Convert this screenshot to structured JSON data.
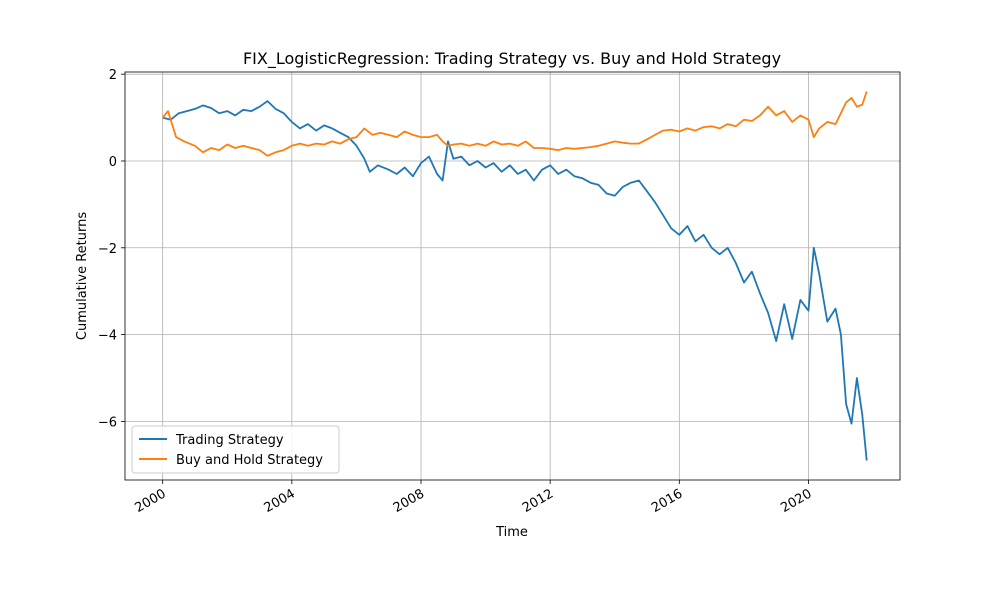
{
  "chart_data": {
    "type": "line",
    "title": "FIX_LogisticRegression: Trading Strategy vs. Buy and Hold Strategy",
    "xlabel": "Time",
    "ylabel": "Cumulative Returns",
    "xlim": [
      "1998-11-01",
      "2022-11-01"
    ],
    "ylim": [
      -7.35,
      2.05
    ],
    "x_ticks": [
      {
        "label": "2000",
        "date": "2000-01-01"
      },
      {
        "label": "2004",
        "date": "2004-01-01"
      },
      {
        "label": "2008",
        "date": "2008-01-01"
      },
      {
        "label": "2012",
        "date": "2012-01-01"
      },
      {
        "label": "2016",
        "date": "2016-01-01"
      },
      {
        "label": "2020",
        "date": "2020-01-01"
      }
    ],
    "y_ticks": [
      {
        "label": "2",
        "value": 2
      },
      {
        "label": "0",
        "value": 0
      },
      {
        "label": "−2",
        "value": -2
      },
      {
        "label": "−4",
        "value": -4
      },
      {
        "label": "−6",
        "value": -6
      }
    ],
    "grid": true,
    "legend_position": "lower-left",
    "series": [
      {
        "name": "Trading Strategy",
        "color": "#1f77b4",
        "points": [
          [
            "2000-01-01",
            1.0
          ],
          [
            "2000-04-01",
            0.95
          ],
          [
            "2000-07-01",
            1.1
          ],
          [
            "2000-10-01",
            1.15
          ],
          [
            "2001-01-01",
            1.2
          ],
          [
            "2001-04-01",
            1.28
          ],
          [
            "2001-07-01",
            1.22
          ],
          [
            "2001-10-01",
            1.1
          ],
          [
            "2002-01-01",
            1.15
          ],
          [
            "2002-04-01",
            1.05
          ],
          [
            "2002-07-01",
            1.18
          ],
          [
            "2002-10-01",
            1.15
          ],
          [
            "2003-01-01",
            1.25
          ],
          [
            "2003-04-01",
            1.38
          ],
          [
            "2003-07-01",
            1.2
          ],
          [
            "2003-10-01",
            1.1
          ],
          [
            "2004-01-01",
            0.9
          ],
          [
            "2004-04-01",
            0.75
          ],
          [
            "2004-07-01",
            0.85
          ],
          [
            "2004-10-01",
            0.7
          ],
          [
            "2005-01-01",
            0.82
          ],
          [
            "2005-04-01",
            0.75
          ],
          [
            "2005-07-01",
            0.65
          ],
          [
            "2005-10-01",
            0.55
          ],
          [
            "2006-01-01",
            0.35
          ],
          [
            "2006-04-01",
            0.05
          ],
          [
            "2006-06-01",
            -0.25
          ],
          [
            "2006-09-01",
            -0.1
          ],
          [
            "2007-01-01",
            -0.2
          ],
          [
            "2007-04-01",
            -0.3
          ],
          [
            "2007-07-01",
            -0.15
          ],
          [
            "2007-10-01",
            -0.35
          ],
          [
            "2008-01-01",
            -0.05
          ],
          [
            "2008-04-01",
            0.1
          ],
          [
            "2008-07-01",
            -0.3
          ],
          [
            "2008-09-01",
            -0.45
          ],
          [
            "2008-11-01",
            0.45
          ],
          [
            "2009-01-01",
            0.05
          ],
          [
            "2009-04-01",
            0.1
          ],
          [
            "2009-07-01",
            -0.1
          ],
          [
            "2009-10-01",
            0.0
          ],
          [
            "2010-01-01",
            -0.15
          ],
          [
            "2010-04-01",
            -0.05
          ],
          [
            "2010-07-01",
            -0.25
          ],
          [
            "2010-10-01",
            -0.1
          ],
          [
            "2011-01-01",
            -0.3
          ],
          [
            "2011-04-01",
            -0.2
          ],
          [
            "2011-07-01",
            -0.45
          ],
          [
            "2011-10-01",
            -0.2
          ],
          [
            "2012-01-01",
            -0.1
          ],
          [
            "2012-04-01",
            -0.3
          ],
          [
            "2012-07-01",
            -0.2
          ],
          [
            "2012-10-01",
            -0.35
          ],
          [
            "2013-01-01",
            -0.4
          ],
          [
            "2013-04-01",
            -0.5
          ],
          [
            "2013-07-01",
            -0.55
          ],
          [
            "2013-10-01",
            -0.75
          ],
          [
            "2014-01-01",
            -0.8
          ],
          [
            "2014-04-01",
            -0.6
          ],
          [
            "2014-07-01",
            -0.5
          ],
          [
            "2014-10-01",
            -0.45
          ],
          [
            "2015-01-01",
            -0.7
          ],
          [
            "2015-04-01",
            -0.95
          ],
          [
            "2015-07-01",
            -1.25
          ],
          [
            "2015-10-01",
            -1.55
          ],
          [
            "2016-01-01",
            -1.7
          ],
          [
            "2016-04-01",
            -1.5
          ],
          [
            "2016-07-01",
            -1.85
          ],
          [
            "2016-10-01",
            -1.7
          ],
          [
            "2017-01-01",
            -2.0
          ],
          [
            "2017-04-01",
            -2.15
          ],
          [
            "2017-07-01",
            -2.0
          ],
          [
            "2017-10-01",
            -2.35
          ],
          [
            "2018-01-01",
            -2.8
          ],
          [
            "2018-04-01",
            -2.55
          ],
          [
            "2018-07-01",
            -3.05
          ],
          [
            "2018-10-01",
            -3.5
          ],
          [
            "2019-01-01",
            -4.15
          ],
          [
            "2019-04-01",
            -3.3
          ],
          [
            "2019-07-01",
            -4.1
          ],
          [
            "2019-10-01",
            -3.2
          ],
          [
            "2020-01-01",
            -3.45
          ],
          [
            "2020-03-01",
            -2.0
          ],
          [
            "2020-05-01",
            -2.6
          ],
          [
            "2020-08-01",
            -3.7
          ],
          [
            "2020-11-01",
            -3.4
          ],
          [
            "2021-01-01",
            -4.0
          ],
          [
            "2021-03-01",
            -5.6
          ],
          [
            "2021-05-01",
            -6.05
          ],
          [
            "2021-07-01",
            -5.0
          ],
          [
            "2021-09-01",
            -5.85
          ],
          [
            "2021-10-20",
            -6.9
          ]
        ]
      },
      {
        "name": "Buy and Hold Strategy",
        "color": "#ff7f0e",
        "points": [
          [
            "2000-01-01",
            1.0
          ],
          [
            "2000-03-01",
            1.15
          ],
          [
            "2000-06-01",
            0.55
          ],
          [
            "2000-09-01",
            0.45
          ],
          [
            "2001-01-01",
            0.35
          ],
          [
            "2001-04-01",
            0.2
          ],
          [
            "2001-07-01",
            0.3
          ],
          [
            "2001-10-01",
            0.25
          ],
          [
            "2002-01-01",
            0.38
          ],
          [
            "2002-04-01",
            0.3
          ],
          [
            "2002-07-01",
            0.35
          ],
          [
            "2002-10-01",
            0.3
          ],
          [
            "2003-01-01",
            0.25
          ],
          [
            "2003-04-01",
            0.12
          ],
          [
            "2003-07-01",
            0.2
          ],
          [
            "2003-10-01",
            0.25
          ],
          [
            "2004-01-01",
            0.35
          ],
          [
            "2004-04-01",
            0.4
          ],
          [
            "2004-07-01",
            0.35
          ],
          [
            "2004-10-01",
            0.4
          ],
          [
            "2005-01-01",
            0.38
          ],
          [
            "2005-04-01",
            0.45
          ],
          [
            "2005-07-01",
            0.4
          ],
          [
            "2005-10-01",
            0.5
          ],
          [
            "2006-01-01",
            0.55
          ],
          [
            "2006-04-01",
            0.75
          ],
          [
            "2006-07-01",
            0.6
          ],
          [
            "2006-10-01",
            0.65
          ],
          [
            "2007-01-01",
            0.6
          ],
          [
            "2007-04-01",
            0.55
          ],
          [
            "2007-07-01",
            0.68
          ],
          [
            "2007-10-01",
            0.6
          ],
          [
            "2008-01-01",
            0.55
          ],
          [
            "2008-04-01",
            0.55
          ],
          [
            "2008-07-01",
            0.6
          ],
          [
            "2008-09-01",
            0.45
          ],
          [
            "2008-11-01",
            0.35
          ],
          [
            "2009-01-01",
            0.38
          ],
          [
            "2009-04-01",
            0.4
          ],
          [
            "2009-07-01",
            0.35
          ],
          [
            "2009-10-01",
            0.4
          ],
          [
            "2010-01-01",
            0.35
          ],
          [
            "2010-04-01",
            0.45
          ],
          [
            "2010-07-01",
            0.38
          ],
          [
            "2010-10-01",
            0.4
          ],
          [
            "2011-01-01",
            0.35
          ],
          [
            "2011-04-01",
            0.45
          ],
          [
            "2011-07-01",
            0.3
          ],
          [
            "2011-10-01",
            0.3
          ],
          [
            "2012-01-01",
            0.28
          ],
          [
            "2012-04-01",
            0.25
          ],
          [
            "2012-07-01",
            0.3
          ],
          [
            "2012-10-01",
            0.28
          ],
          [
            "2013-01-01",
            0.3
          ],
          [
            "2013-04-01",
            0.32
          ],
          [
            "2013-07-01",
            0.35
          ],
          [
            "2013-10-01",
            0.4
          ],
          [
            "2014-01-01",
            0.45
          ],
          [
            "2014-04-01",
            0.42
          ],
          [
            "2014-07-01",
            0.4
          ],
          [
            "2014-10-01",
            0.4
          ],
          [
            "2015-01-01",
            0.5
          ],
          [
            "2015-04-01",
            0.6
          ],
          [
            "2015-07-01",
            0.7
          ],
          [
            "2015-10-01",
            0.72
          ],
          [
            "2016-01-01",
            0.68
          ],
          [
            "2016-04-01",
            0.75
          ],
          [
            "2016-07-01",
            0.7
          ],
          [
            "2016-10-01",
            0.78
          ],
          [
            "2017-01-01",
            0.8
          ],
          [
            "2017-04-01",
            0.75
          ],
          [
            "2017-07-01",
            0.85
          ],
          [
            "2017-10-01",
            0.8
          ],
          [
            "2018-01-01",
            0.95
          ],
          [
            "2018-04-01",
            0.92
          ],
          [
            "2018-07-01",
            1.05
          ],
          [
            "2018-10-01",
            1.25
          ],
          [
            "2019-01-01",
            1.05
          ],
          [
            "2019-04-01",
            1.15
          ],
          [
            "2019-07-01",
            0.9
          ],
          [
            "2019-10-01",
            1.05
          ],
          [
            "2020-01-01",
            0.95
          ],
          [
            "2020-03-01",
            0.55
          ],
          [
            "2020-05-01",
            0.75
          ],
          [
            "2020-08-01",
            0.9
          ],
          [
            "2020-11-01",
            0.85
          ],
          [
            "2021-01-01",
            1.1
          ],
          [
            "2021-03-01",
            1.35
          ],
          [
            "2021-05-01",
            1.45
          ],
          [
            "2021-07-01",
            1.25
          ],
          [
            "2021-09-01",
            1.3
          ],
          [
            "2021-10-20",
            1.6
          ]
        ]
      }
    ]
  }
}
